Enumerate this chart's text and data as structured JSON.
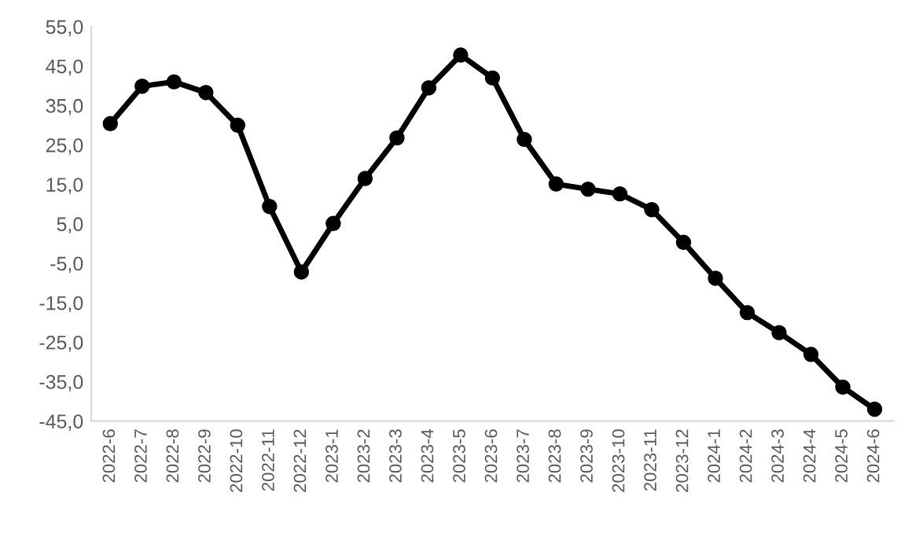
{
  "chart_data": {
    "type": "line",
    "categories": [
      "2022-6",
      "2022-7",
      "2022-8",
      "2022-9",
      "2022-10",
      "2022-11",
      "2022-12",
      "2023-1",
      "2023-2",
      "2023-3",
      "2023-4",
      "2023-5",
      "2023-6",
      "2023-7",
      "2023-8",
      "2023-9",
      "2023-10",
      "2023-11",
      "2023-12",
      "2024-1",
      "2024-2",
      "2024-3",
      "2024-4",
      "2024-5",
      "2024-6"
    ],
    "values": [
      30.4,
      39.9,
      41.0,
      38.3,
      30.0,
      9.4,
      -7.2,
      5.1,
      16.5,
      26.8,
      39.5,
      47.8,
      42.0,
      26.4,
      15.1,
      13.8,
      12.6,
      8.6,
      0.3,
      -8.8,
      -17.5,
      -22.6,
      -28.1,
      -36.4,
      -42.0
    ],
    "color": "#000000",
    "marker": "circle",
    "line_style": "solid",
    "ylim": [
      -45,
      55
    ],
    "yticks": [
      {
        "value": -45,
        "label": "-45,0"
      },
      {
        "value": -35,
        "label": "-35,0"
      },
      {
        "value": -25,
        "label": "-25,0"
      },
      {
        "value": -15,
        "label": "-15,0"
      },
      {
        "value": -5,
        "label": "-5,0"
      },
      {
        "value": 5,
        "label": "5,0"
      },
      {
        "value": 15,
        "label": "15,0"
      },
      {
        "value": 25,
        "label": "25,0"
      },
      {
        "value": 35,
        "label": "35,0"
      },
      {
        "value": 45,
        "label": "45,0"
      },
      {
        "value": 55,
        "label": "55,0"
      }
    ],
    "grid": false,
    "legend": false
  }
}
